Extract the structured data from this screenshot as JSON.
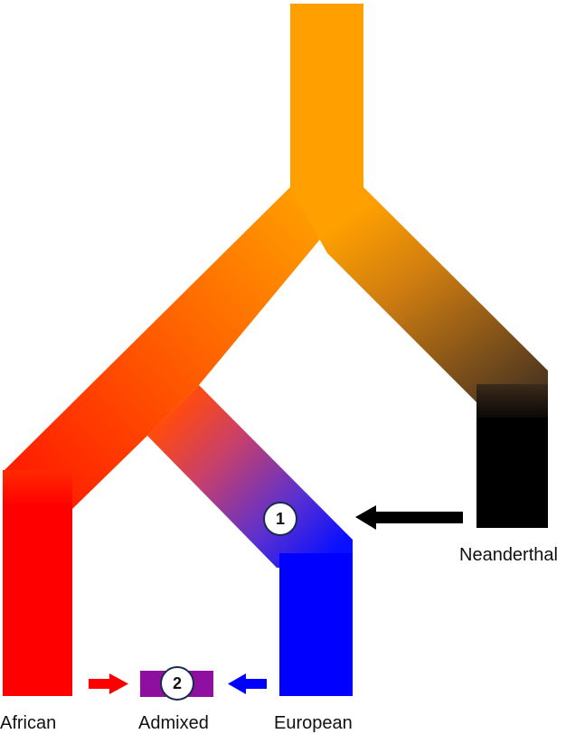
{
  "colors": {
    "ancestral": "#ffa000",
    "african": "#ff0000",
    "european": "#0000ff",
    "admixed": "#8e0fa0",
    "neanderthal": "#000000",
    "arrow_african": "#ff0000",
    "arrow_european": "#0000ff",
    "arrow_neanderthal": "#000000"
  },
  "populations": {
    "african": "African",
    "admixed": "Admixed",
    "european": "European",
    "neanderthal": "Neanderthal"
  },
  "events": {
    "introgression_number": "1",
    "admixture_number": "2"
  }
}
